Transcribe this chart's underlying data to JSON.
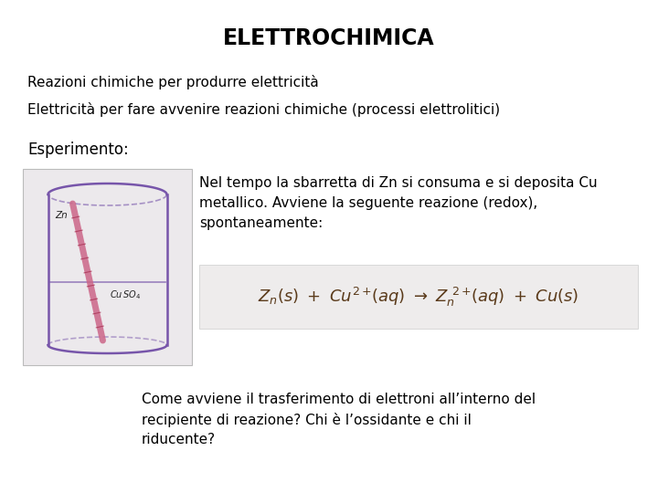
{
  "title": "ELETTROCHIMICA",
  "line1": "Reazioni chimiche per produrre elettricità",
  "line2": "Elettricità per fare avvenire reazioni chimiche (processi elettrolitici)",
  "label_esperimento": "Esperimento:",
  "tb1_l1": "Nel tempo la sbarretta di Zn si consuma e si deposita Cu",
  "tb1_l2": "metallico. Avviene la seguente reazione (redox),",
  "tb1_l3": "spontaneamente:",
  "tb2_l1": "Come avviene il trasferimento di elettroni all’interno del",
  "tb2_l2": "recipiente di reazione? Chi è l’ossidante e chi il",
  "tb2_l3": "riducente?",
  "bg_color": "#ffffff",
  "text_color": "#000000",
  "title_fontsize": 17,
  "body_fontsize": 11,
  "label_fontsize": 12,
  "img_box_color": "#ece9ec",
  "formula_box_color": "#eeecec",
  "beaker_color": "#7755aa",
  "strip_color": "#cc6688"
}
